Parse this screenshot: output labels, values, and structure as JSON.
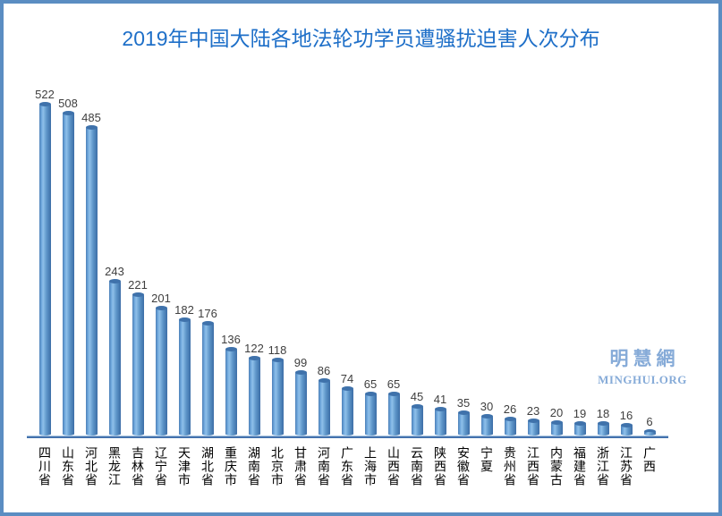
{
  "title": "2019年中国大陆各地法轮功学员遭骚扰迫害人次分布",
  "watermark": {
    "logo_text": "明慧網",
    "site": "MINGHUI.ORG"
  },
  "colors": {
    "title_text": "#1e6fc8",
    "bar_main": "#5b93c9",
    "bar_highlight": "#8fc0ea",
    "bar_shadow": "#3c6da6",
    "axis_line": "#4472ad",
    "frame_border": "#5b8dc2",
    "value_label": "#3f3f3f",
    "category_label": "#000000",
    "watermark": "#86abd8",
    "background": "#ffffff"
  },
  "chart_data": {
    "type": "bar",
    "title": "2019年中国大陆各地法轮功学员遭骚扰迫害人次分布",
    "categories": [
      "四川省",
      "山东省",
      "河北省",
      "黑龙江",
      "吉林省",
      "辽宁省",
      "天津市",
      "湖北省",
      "重庆市",
      "湖南省",
      "北京市",
      "甘肃省",
      "河南省",
      "广东省",
      "上海市",
      "山西省",
      "云南省",
      "陕西省",
      "安徽省",
      "宁夏",
      "贵州省",
      "江西省",
      "内蒙古",
      "福建省",
      "浙江省",
      "江苏省",
      "广西"
    ],
    "values": [
      522,
      508,
      485,
      243,
      221,
      201,
      182,
      176,
      136,
      122,
      118,
      99,
      86,
      74,
      65,
      65,
      45,
      41,
      35,
      30,
      26,
      23,
      20,
      19,
      18,
      16,
      6
    ],
    "xlabel": "",
    "ylabel": "",
    "ylim": [
      0,
      522
    ],
    "value_labels_shown": true,
    "gridlines": false,
    "legend": "none",
    "bar_style": "3d-cylinder",
    "category_label_orientation": "vertical",
    "source_watermark": "明慧網 MINGHUI.ORG"
  }
}
